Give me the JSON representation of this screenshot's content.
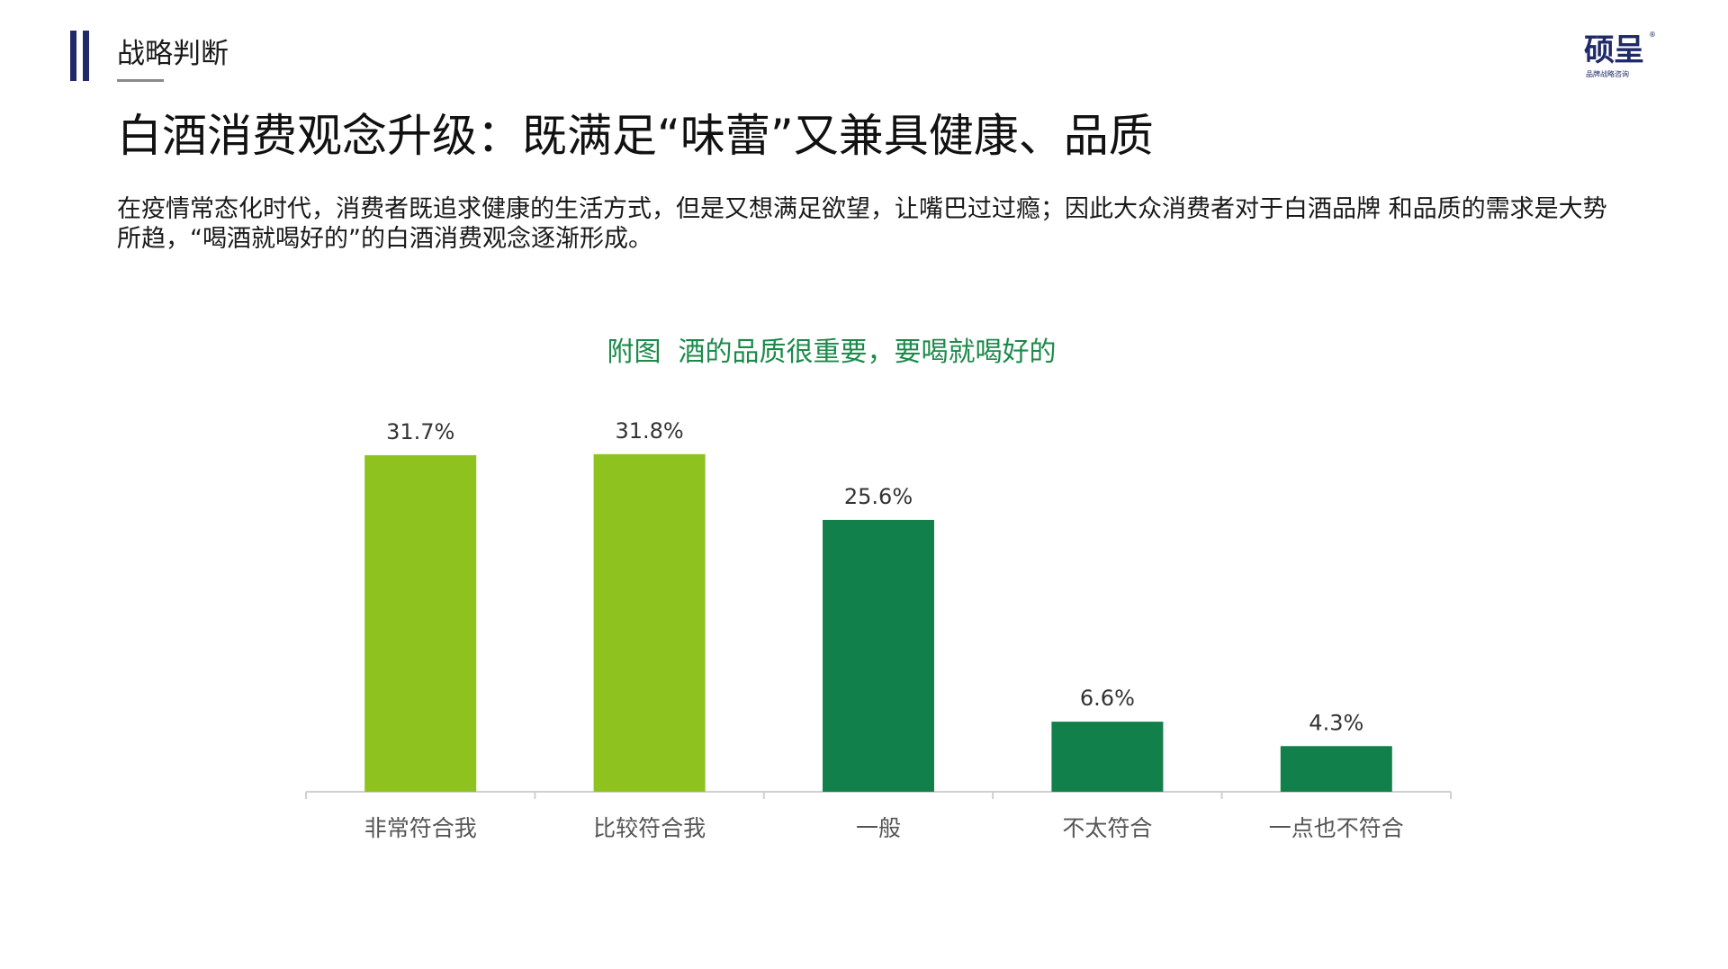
{
  "header": {
    "section_label": "战略判断",
    "logo": {
      "text": "硕呈",
      "tagline": "品牌战略咨询",
      "reg": "®"
    }
  },
  "page": {
    "title": "白酒消费观念升级：既满足“味蕾”又兼具健康、品质",
    "intro": "在疫情常态化时代，消费者既追求健康的生活方式，但是又想满足欲望，让嘴巴过过瘾；因此大众消费者对于白酒品牌 和品质的需求是大势所趋，“喝酒就喝好的”的白酒消费观念逐渐形成。"
  },
  "colors": {
    "accent_navy": "#1f2a68",
    "bar_light_green": "#8dc21f",
    "bar_dark_green": "#12804a",
    "chart_title_green": "#1b8a4a"
  },
  "chart_data": {
    "type": "bar",
    "title": "附图  酒的品质很重要，要喝就喝好的",
    "xlabel": "",
    "ylabel": "",
    "categories": [
      "非常符合我",
      "比较符合我",
      "一般",
      "不太符合",
      "一点也不符合"
    ],
    "values": [
      31.7,
      31.8,
      25.6,
      6.6,
      4.3
    ],
    "value_labels": [
      "31.7%",
      "31.8%",
      "25.6%",
      "6.6%",
      "4.3%"
    ],
    "bar_colors": [
      "#8dc21f",
      "#8dc21f",
      "#12804a",
      "#12804a",
      "#12804a"
    ],
    "unit": "%",
    "grid": false,
    "legend": "none"
  }
}
